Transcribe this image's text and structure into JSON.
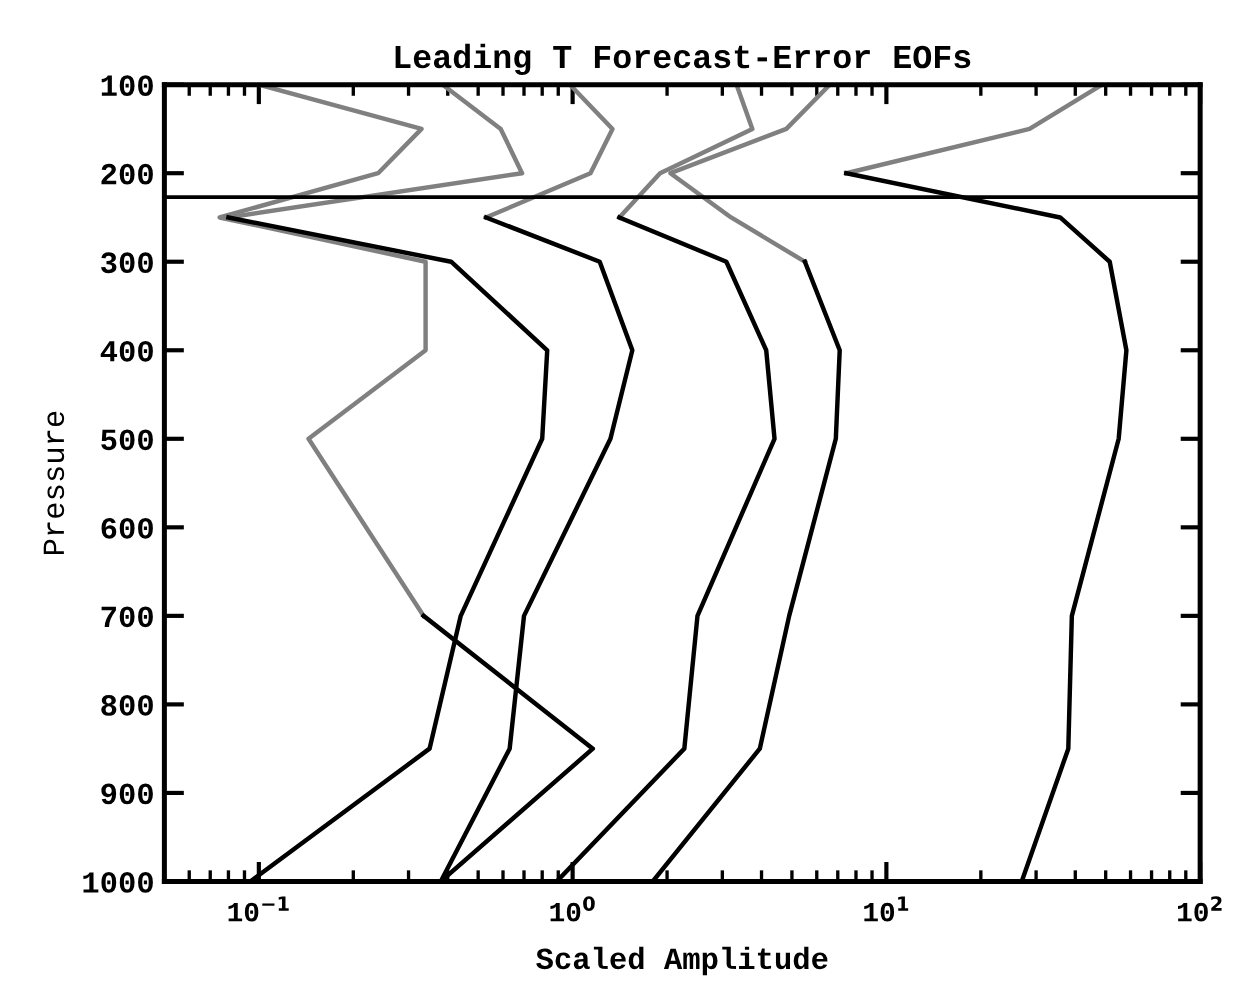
{
  "chart_data": {
    "type": "line",
    "title": "Leading T Forecast-Error EOFs",
    "xlabel": "Scaled Amplitude",
    "ylabel": "Pressure",
    "log": "x",
    "xlim": [
      0.05,
      100
    ],
    "xticks": [
      {
        "value": 0.1,
        "label": "10$^{−1}$"
      },
      {
        "value": 1,
        "label": "10$^{0}$"
      },
      {
        "value": 10,
        "label": "10$^{1}$"
      },
      {
        "value": 100,
        "label": "10$^{2}$"
      }
    ],
    "ylim": [
      1000,
      100
    ],
    "yticks": [
      100,
      200,
      300,
      400,
      500,
      600,
      700,
      800,
      900,
      1000
    ],
    "grid": false,
    "marker": "none",
    "line_style": "solid",
    "ref_lines": [
      {
        "axis": "y",
        "value": 227,
        "color": "#000000"
      }
    ],
    "series": [
      {
        "color": "#808080",
        "x": [
          0.1,
          0.33,
          0.24,
          0.075,
          0.34,
          0.34,
          0.144,
          0.335
        ],
        "values": [
          100,
          150,
          200,
          250,
          300,
          400,
          500,
          700
        ]
      },
      {
        "color": "#000000",
        "x": [
          0.335,
          1.16,
          0.38
        ],
        "values": [
          700,
          850,
          1000
        ]
      },
      {
        "color": "#808080",
        "x": [
          0.385,
          0.59,
          0.69,
          0.08
        ],
        "values": [
          100,
          150,
          200,
          250
        ]
      },
      {
        "color": "#000000",
        "x": [
          0.08,
          0.41,
          0.83,
          0.8,
          0.44,
          0.35,
          0.094
        ],
        "values": [
          250,
          300,
          400,
          500,
          700,
          850,
          1000
        ]
      },
      {
        "color": "#808080",
        "x": [
          0.98,
          1.34,
          1.14,
          0.53
        ],
        "values": [
          100,
          150,
          200,
          250
        ]
      },
      {
        "color": "#000000",
        "x": [
          0.53,
          1.22,
          1.55,
          1.32,
          0.7,
          0.63,
          0.38
        ],
        "values": [
          250,
          300,
          400,
          500,
          700,
          850,
          1000
        ]
      },
      {
        "color": "#808080",
        "x": [
          3.33,
          3.74,
          1.9,
          1.41
        ],
        "values": [
          100,
          150,
          200,
          250
        ]
      },
      {
        "color": "#000000",
        "x": [
          1.41,
          3.09,
          4.14,
          4.4,
          2.5,
          2.27,
          0.89
        ],
        "values": [
          250,
          300,
          400,
          500,
          700,
          850,
          1000
        ]
      },
      {
        "color": "#808080",
        "x": [
          6.6,
          4.8,
          2.05,
          3.2,
          5.5
        ],
        "values": [
          100,
          150,
          200,
          250,
          300
        ]
      },
      {
        "color": "#000000",
        "x": [
          5.5,
          7.1,
          6.9,
          4.9,
          3.95,
          1.8
        ],
        "values": [
          300,
          400,
          500,
          700,
          850,
          1000
        ]
      },
      {
        "color": "#808080",
        "x": [
          48.7,
          28.6,
          7.45
        ],
        "values": [
          100,
          150,
          200
        ]
      },
      {
        "color": "#000000",
        "x": [
          7.45,
          35.8,
          51.5,
          58.2,
          55,
          39,
          38,
          27
        ],
        "values": [
          200,
          250,
          300,
          400,
          500,
          700,
          850,
          1000
        ]
      }
    ]
  }
}
